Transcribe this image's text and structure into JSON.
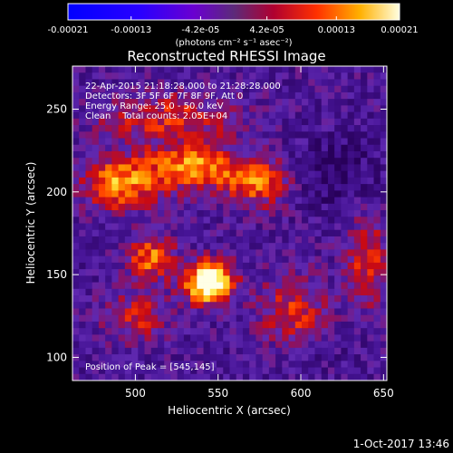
{
  "chart_data": {
    "type": "heatmap",
    "title": "Reconstructed RHESSI Image",
    "xlabel": "Heliocentric X (arcsec)",
    "ylabel": "Heliocentric Y (arcsec)",
    "xlim": [
      462,
      652
    ],
    "ylim": [
      86,
      276
    ],
    "x_ticks": [
      500,
      550,
      600,
      650
    ],
    "y_ticks": [
      100,
      150,
      200,
      250
    ],
    "colorbar": {
      "ticks": [
        "-0.00021",
        "-0.00013",
        "-4.2e-05",
        "4.2e-05",
        "0.00013",
        "0.00021"
      ],
      "tick_values": [
        -0.00021,
        -0.00013,
        -4.2e-05,
        4.2e-05,
        0.00013,
        0.00021
      ],
      "range": [
        -0.00021,
        0.00021
      ],
      "unit_label": "(photons cm⁻² s⁻¹ asec⁻²)",
      "colormap": "rhessi",
      "colors": [
        "#000000",
        "#1a1aff",
        "#ff0000",
        "#ff8c00",
        "#ffff40",
        "#ffffff"
      ]
    },
    "annotations": {
      "time_range": "22-Apr-2015 21:18:28.000 to 21:28:28.000",
      "detectors": "Detectors: 3F 5F 6F 7F 8F 9F, Att 0",
      "energy": "Energy Range: 25.0 - 50.0 keV",
      "clean": "Clean    Total counts: 2.05E+04",
      "peak": "Position of Peak = [545,145]"
    },
    "peak": {
      "x": 545,
      "y": 145
    },
    "grid": false
  },
  "footer": {
    "date": "1-Oct-2017 13:46"
  }
}
